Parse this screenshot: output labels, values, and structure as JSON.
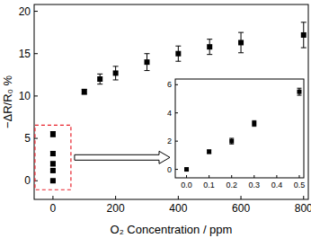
{
  "chart_data": [
    {
      "type": "scatter",
      "x_label": "O₂ Concentration / ppm",
      "y_label": "−ΔR/R₀ %",
      "x": [
        0,
        0,
        0,
        0,
        0,
        100,
        150,
        200,
        300,
        400,
        500,
        600,
        800
      ],
      "values": [
        0,
        1.2,
        2.0,
        3.2,
        5.5,
        10.5,
        12,
        12.7,
        14,
        15,
        15.8,
        16.3,
        17.2
      ],
      "errors": [
        0.1,
        0.15,
        0.25,
        0.25,
        0.3,
        0.3,
        0.6,
        0.8,
        1.0,
        0.9,
        0.9,
        1.2,
        1.5
      ],
      "xlim": [
        -60,
        815
      ],
      "ylim": [
        -2.2,
        20.8
      ],
      "xticks": [
        0,
        200,
        400,
        600,
        800
      ],
      "yticks": [
        0,
        5,
        10,
        15,
        20
      ],
      "marker": "square",
      "color": "#000000"
    },
    {
      "type": "scatter",
      "x": [
        0,
        0.1,
        0.2,
        0.3,
        0.5
      ],
      "values": [
        0,
        1.25,
        2.0,
        3.25,
        5.5
      ],
      "errors": [
        0.05,
        0.12,
        0.2,
        0.2,
        0.25
      ],
      "xlim": [
        -0.05,
        0.52
      ],
      "ylim": [
        -0.6,
        6.4
      ],
      "xticks": [
        {
          "value": 0,
          "label": "0.0"
        },
        {
          "value": 0.1,
          "label": "0.1"
        },
        {
          "value": 0.2,
          "label": "0.2"
        },
        {
          "value": 0.3,
          "label": "0.3"
        },
        {
          "value": 0.4,
          "label": "0.4"
        },
        {
          "value": 0.5,
          "label": "0.5"
        }
      ],
      "yticks": [
        0,
        2,
        4,
        6
      ],
      "marker": "square",
      "color": "#000000"
    }
  ]
}
